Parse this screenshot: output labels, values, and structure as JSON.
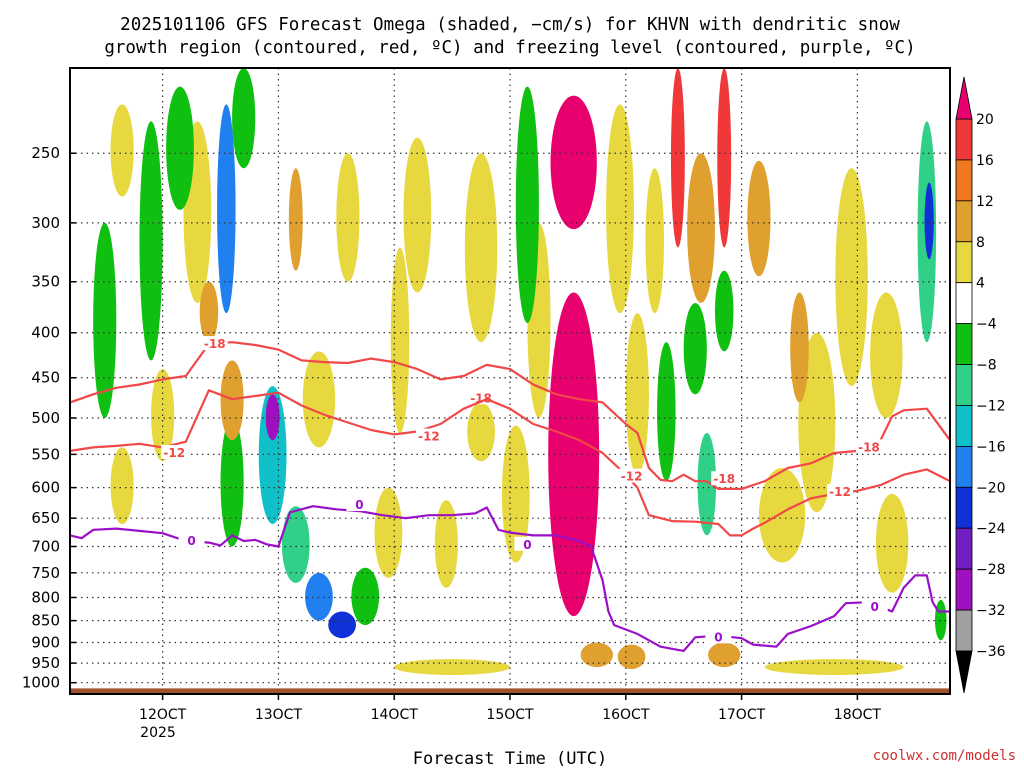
{
  "chart_data": {
    "type": "heatmap",
    "title_lines": [
      "2025101106 GFS Forecast Omega (shaded, −cm/s) for KHVN with dendritic snow",
      "growth region (contoured, red, ºC) and freezing level (contoured, purple, ºC)"
    ],
    "xlabel": "Forecast Time (UTC)",
    "xlim": [
      112,
      188
    ],
    "x_ticks": [
      {
        "value": 120,
        "label": "12OCT"
      },
      {
        "value": 130,
        "label": "13OCT"
      },
      {
        "value": 140,
        "label": "14OCT"
      },
      {
        "value": 150,
        "label": "15OCT"
      },
      {
        "value": 160,
        "label": "16OCT"
      },
      {
        "value": 170,
        "label": "17OCT"
      },
      {
        "value": 180,
        "label": "18OCT"
      }
    ],
    "x_year_label": "2025",
    "y_scale": "log",
    "y_reversed": true,
    "ylim": [
      1030,
      200
    ],
    "y_ticks": [
      "250",
      "300",
      "350",
      "400",
      "450",
      "500",
      "550",
      "600",
      "650",
      "700",
      "750",
      "800",
      "850",
      "900",
      "950",
      "1000"
    ],
    "grid": true,
    "colorbar": {
      "labels": [
        "20",
        "16",
        "12",
        "8",
        "4",
        "−4",
        "−8",
        "−12",
        "−16",
        "−20",
        "−24",
        "−28",
        "−32",
        "−36"
      ],
      "colors": [
        "#e8006e",
        "#f03838",
        "#f07820",
        "#e0a030",
        "#e8d840",
        "#ffffff",
        "#10c010",
        "#30d088",
        "#10c0c8",
        "#2080f0",
        "#1030d8",
        "#7020c0",
        "#a010c0",
        "#a0a0a0"
      ]
    },
    "omega_blobs": [
      {
        "x": 155.5,
        "p": 600,
        "w": 2.2,
        "h": 480,
        "v": 22
      },
      {
        "x": 155.5,
        "p": 260,
        "w": 2.0,
        "h": 90,
        "v": 22
      },
      {
        "x": 164.5,
        "p": 260,
        "w": 0.6,
        "h": 120,
        "v": 17
      },
      {
        "x": 168.5,
        "p": 260,
        "w": 0.6,
        "h": 120,
        "v": 17
      },
      {
        "x": 131.5,
        "p": 300,
        "w": 0.6,
        "h": 80,
        "v": 9
      },
      {
        "x": 147.5,
        "p": 520,
        "w": 1.2,
        "h": 80,
        "v": 7
      },
      {
        "x": 162.5,
        "p": 320,
        "w": 0.8,
        "h": 120,
        "v": 7
      },
      {
        "x": 166.5,
        "p": 310,
        "w": 1.2,
        "h": 120,
        "v": 10
      },
      {
        "x": 171.5,
        "p": 300,
        "w": 1.0,
        "h": 90,
        "v": 9
      },
      {
        "x": 175.0,
        "p": 420,
        "w": 0.8,
        "h": 120,
        "v": 8
      },
      {
        "x": 182.5,
        "p": 430,
        "w": 1.4,
        "h": 140,
        "v": 6
      },
      {
        "x": 157.5,
        "p": 930,
        "w": 1.4,
        "h": 60,
        "v": 9
      },
      {
        "x": 160.5,
        "p": 935,
        "w": 1.2,
        "h": 60,
        "v": 9
      },
      {
        "x": 168.5,
        "p": 930,
        "w": 1.4,
        "h": 60,
        "v": 9
      },
      {
        "x": 145.0,
        "p": 960,
        "w": 5.0,
        "h": 40,
        "v": 5
      },
      {
        "x": 178.0,
        "p": 960,
        "w": 6.0,
        "h": 40,
        "v": 5
      },
      {
        "x": 120.0,
        "p": 500,
        "w": 1.0,
        "h": 120,
        "v": 5
      },
      {
        "x": 116.5,
        "p": 600,
        "w": 1.0,
        "h": 120,
        "v": 6
      },
      {
        "x": 126.0,
        "p": 480,
        "w": 1.0,
        "h": 100,
        "v": 8
      },
      {
        "x": 124.0,
        "p": 380,
        "w": 0.8,
        "h": 60,
        "v": 9
      },
      {
        "x": 140.5,
        "p": 420,
        "w": 0.8,
        "h": 200,
        "v": 4.5
      },
      {
        "x": 136.0,
        "p": 300,
        "w": 1.0,
        "h": 100,
        "v": 5
      },
      {
        "x": 129.5,
        "p": 500,
        "w": 0.6,
        "h": 60,
        "v": -28
      },
      {
        "x": 125.5,
        "p": 300,
        "w": 0.8,
        "h": 160,
        "v": -18
      },
      {
        "x": 129.5,
        "p": 560,
        "w": 1.2,
        "h": 200,
        "v": -12
      },
      {
        "x": 131.5,
        "p": 700,
        "w": 1.2,
        "h": 140,
        "v": -10
      },
      {
        "x": 133.5,
        "p": 800,
        "w": 1.2,
        "h": 100,
        "v": -16
      },
      {
        "x": 135.5,
        "p": 860,
        "w": 1.2,
        "h": 60,
        "v": -22
      },
      {
        "x": 155.5,
        "p": 780,
        "w": 0.8,
        "h": 80,
        "v": -14
      },
      {
        "x": 115.0,
        "p": 400,
        "w": 1.0,
        "h": 200,
        "v": -6
      },
      {
        "x": 119.0,
        "p": 330,
        "w": 1.0,
        "h": 200,
        "v": -6
      },
      {
        "x": 121.5,
        "p": 250,
        "w": 1.2,
        "h": 80,
        "v": -6
      },
      {
        "x": 127.0,
        "p": 230,
        "w": 1.0,
        "h": 60,
        "v": -6
      },
      {
        "x": 126.0,
        "p": 600,
        "w": 1.0,
        "h": 200,
        "v": -6
      },
      {
        "x": 137.5,
        "p": 800,
        "w": 1.2,
        "h": 120,
        "v": -6
      },
      {
        "x": 151.5,
        "p": 300,
        "w": 1.0,
        "h": 180,
        "v": -6
      },
      {
        "x": 163.5,
        "p": 500,
        "w": 0.8,
        "h": 180,
        "v": -6
      },
      {
        "x": 166.0,
        "p": 420,
        "w": 1.0,
        "h": 100,
        "v": -6
      },
      {
        "x": 167.0,
        "p": 600,
        "w": 0.8,
        "h": 160,
        "v": -8
      },
      {
        "x": 168.5,
        "p": 380,
        "w": 0.8,
        "h": 80,
        "v": -6
      },
      {
        "x": 186.0,
        "p": 320,
        "w": 0.8,
        "h": 180,
        "v": -10
      },
      {
        "x": 186.2,
        "p": 300,
        "w": 0.4,
        "h": 60,
        "v": -20
      },
      {
        "x": 187.2,
        "p": 850,
        "w": 0.5,
        "h": 90,
        "v": -6
      },
      {
        "x": 116.5,
        "p": 250,
        "w": 1.0,
        "h": 60,
        "v": 5
      },
      {
        "x": 123.0,
        "p": 300,
        "w": 1.2,
        "h": 140,
        "v": 5
      },
      {
        "x": 133.5,
        "p": 480,
        "w": 1.4,
        "h": 120,
        "v": 5
      },
      {
        "x": 139.5,
        "p": 680,
        "w": 1.2,
        "h": 160,
        "v": 5
      },
      {
        "x": 142.0,
        "p": 300,
        "w": 1.2,
        "h": 120,
        "v": 5
      },
      {
        "x": 144.5,
        "p": 700,
        "w": 1.0,
        "h": 160,
        "v": 5
      },
      {
        "x": 150.5,
        "p": 620,
        "w": 1.2,
        "h": 220,
        "v": 5
      },
      {
        "x": 152.5,
        "p": 400,
        "w": 1.0,
        "h": 200,
        "v": 5
      },
      {
        "x": 159.5,
        "p": 300,
        "w": 1.2,
        "h": 160,
        "v": 6
      },
      {
        "x": 161.0,
        "p": 480,
        "w": 1.0,
        "h": 200,
        "v": 5
      },
      {
        "x": 173.5,
        "p": 650,
        "w": 2.0,
        "h": 160,
        "v": 5
      },
      {
        "x": 176.5,
        "p": 520,
        "w": 1.6,
        "h": 240,
        "v": 5
      },
      {
        "x": 179.5,
        "p": 360,
        "w": 1.4,
        "h": 200,
        "v": 5
      },
      {
        "x": 183.0,
        "p": 700,
        "w": 1.4,
        "h": 180,
        "v": 5
      },
      {
        "x": 147.5,
        "p": 330,
        "w": 1.4,
        "h": 160,
        "v": 5
      }
    ],
    "dgz_contours": [
      {
        "label": "-18",
        "label_positions": [
          [
            124.5,
            412
          ],
          [
            147.5,
            475
          ],
          [
            168.5,
            587
          ],
          [
            181.0,
            540
          ]
        ],
        "points": [
          [
            112,
            480
          ],
          [
            114,
            470
          ],
          [
            116,
            462
          ],
          [
            118,
            458
          ],
          [
            120,
            452
          ],
          [
            122,
            448
          ],
          [
            124,
            412
          ],
          [
            126,
            410
          ],
          [
            128,
            413
          ],
          [
            130,
            418
          ],
          [
            132,
            430
          ],
          [
            134,
            432
          ],
          [
            136,
            433
          ],
          [
            138,
            428
          ],
          [
            140,
            432
          ],
          [
            142,
            440
          ],
          [
            144,
            452
          ],
          [
            146,
            448
          ],
          [
            148,
            435
          ],
          [
            150,
            440
          ],
          [
            152,
            458
          ],
          [
            154,
            470
          ],
          [
            156,
            476
          ],
          [
            158,
            480
          ],
          [
            160,
            508
          ],
          [
            161,
            520
          ],
          [
            162,
            570
          ],
          [
            163,
            588
          ],
          [
            164,
            590
          ],
          [
            165,
            580
          ],
          [
            166,
            590
          ],
          [
            167,
            590
          ],
          [
            168,
            602
          ],
          [
            170,
            602
          ],
          [
            172,
            590
          ],
          [
            174,
            570
          ],
          [
            176,
            563
          ],
          [
            178,
            548
          ],
          [
            180,
            545
          ],
          [
            182,
            530
          ],
          [
            183,
            498
          ],
          [
            184,
            490
          ],
          [
            186,
            488
          ],
          [
            188,
            530
          ]
        ]
      },
      {
        "label": "-12",
        "label_positions": [
          [
            121.0,
            548
          ],
          [
            143.0,
            525
          ],
          [
            160.5,
            583
          ],
          [
            178.5,
            607
          ]
        ],
        "points": [
          [
            112,
            545
          ],
          [
            114,
            540
          ],
          [
            116,
            538
          ],
          [
            118,
            535
          ],
          [
            120,
            540
          ],
          [
            122,
            532
          ],
          [
            124,
            465
          ],
          [
            126,
            476
          ],
          [
            128,
            472
          ],
          [
            130,
            468
          ],
          [
            132,
            484
          ],
          [
            134,
            496
          ],
          [
            136,
            506
          ],
          [
            138,
            516
          ],
          [
            140,
            522
          ],
          [
            142,
            518
          ],
          [
            144,
            508
          ],
          [
            146,
            488
          ],
          [
            148,
            476
          ],
          [
            150,
            488
          ],
          [
            152,
            508
          ],
          [
            154,
            518
          ],
          [
            156,
            530
          ],
          [
            158,
            548
          ],
          [
            160,
            580
          ],
          [
            161,
            600
          ],
          [
            162,
            645
          ],
          [
            164,
            655
          ],
          [
            166,
            656
          ],
          [
            168,
            660
          ],
          [
            169,
            680
          ],
          [
            170,
            680
          ],
          [
            171,
            668
          ],
          [
            172,
            658
          ],
          [
            174,
            635
          ],
          [
            176,
            617
          ],
          [
            178,
            610
          ],
          [
            180,
            605
          ],
          [
            182,
            596
          ],
          [
            184,
            580
          ],
          [
            186,
            572
          ],
          [
            188,
            590
          ]
        ]
      }
    ],
    "freezing_contour": {
      "label": "0",
      "label_positions": [
        [
          122.5,
          690
        ],
        [
          137.0,
          628
        ],
        [
          151.5,
          697
        ],
        [
          168.0,
          888
        ],
        [
          181.5,
          820
        ]
      ],
      "points": [
        [
          112,
          680
        ],
        [
          113,
          685
        ],
        [
          114,
          670
        ],
        [
          116,
          668
        ],
        [
          118,
          672
        ],
        [
          120,
          676
        ],
        [
          122,
          690
        ],
        [
          124,
          693
        ],
        [
          125,
          698
        ],
        [
          126,
          680
        ],
        [
          127,
          690
        ],
        [
          128,
          688
        ],
        [
          129,
          696
        ],
        [
          130,
          700
        ],
        [
          131,
          640
        ],
        [
          133,
          630
        ],
        [
          135,
          635
        ],
        [
          137,
          638
        ],
        [
          139,
          645
        ],
        [
          141,
          650
        ],
        [
          143,
          645
        ],
        [
          145,
          645
        ],
        [
          147,
          642
        ],
        [
          148,
          632
        ],
        [
          149,
          670
        ],
        [
          150,
          675
        ],
        [
          152,
          680
        ],
        [
          154,
          680
        ],
        [
          156,
          690
        ],
        [
          157,
          700
        ],
        [
          158,
          765
        ],
        [
          158.5,
          830
        ],
        [
          159,
          860
        ],
        [
          161,
          880
        ],
        [
          163,
          910
        ],
        [
          165,
          920
        ],
        [
          166,
          888
        ],
        [
          168,
          884
        ],
        [
          170,
          890
        ],
        [
          171,
          905
        ],
        [
          173,
          910
        ],
        [
          174,
          880
        ],
        [
          176,
          862
        ],
        [
          178,
          840
        ],
        [
          179,
          812
        ],
        [
          181,
          810
        ],
        [
          183,
          830
        ],
        [
          184,
          780
        ],
        [
          185,
          755
        ],
        [
          186,
          755
        ],
        [
          186.5,
          810
        ],
        [
          187,
          830
        ],
        [
          188,
          830
        ]
      ]
    },
    "ground_level_p": 1030,
    "ground_top_p": 1015,
    "footer_credit": "coolwx.com/models"
  }
}
